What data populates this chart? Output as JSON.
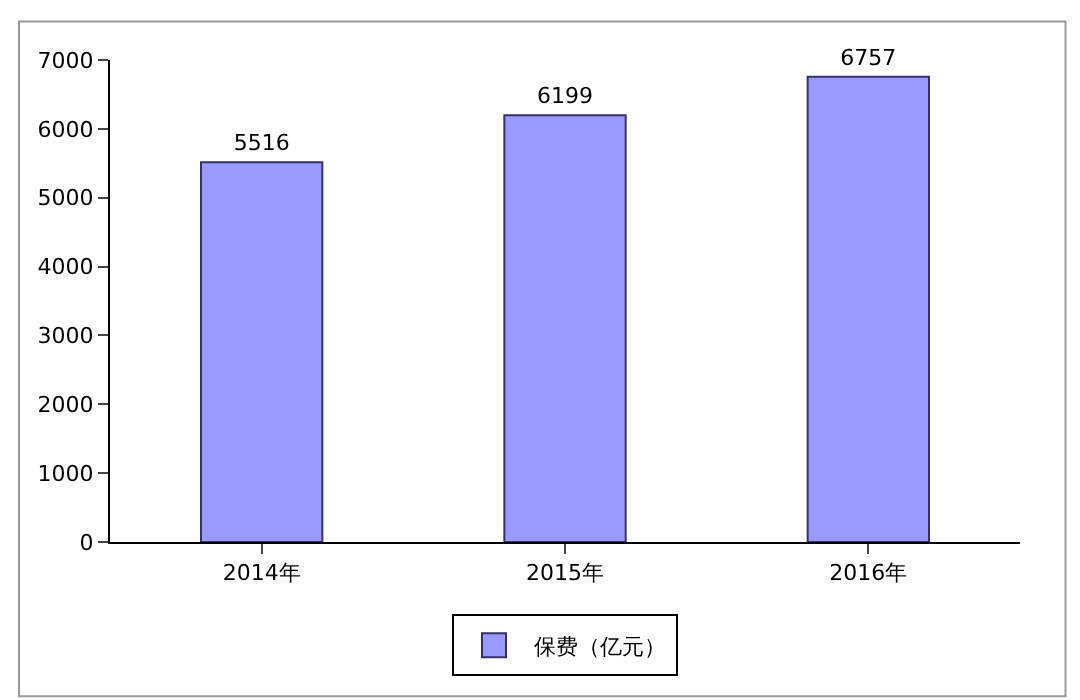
{
  "chart_data": {
    "type": "bar",
    "categories": [
      "2014年",
      "2015年",
      "2016年"
    ],
    "series": [
      {
        "name": "保费（亿元）",
        "color": "#9999ff",
        "values": [
          5516,
          6199,
          6757
        ]
      }
    ],
    "ylim": [
      0,
      7000
    ],
    "yticks": [
      0,
      1000,
      2000,
      3000,
      4000,
      5000,
      6000,
      7000
    ],
    "data_labels": true,
    "legend": "bottom",
    "grid": false
  }
}
